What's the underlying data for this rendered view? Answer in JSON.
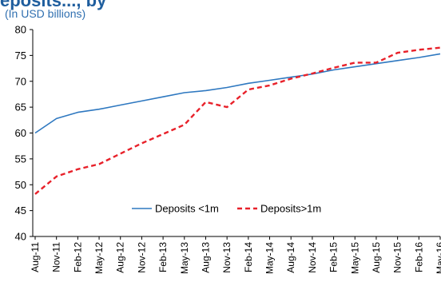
{
  "chart_data": {
    "type": "line",
    "title": "",
    "title_fragment": "eposits..., by",
    "subtitle": "(In USD billions)",
    "xlabel": "",
    "ylabel": "",
    "ylim": [
      40,
      80
    ],
    "yticks": [
      40,
      45,
      50,
      55,
      60,
      65,
      70,
      75,
      80
    ],
    "categories": [
      "Aug-11",
      "Nov-11",
      "Feb-12",
      "May-12",
      "Aug-12",
      "Nov-12",
      "Feb-13",
      "May-13",
      "Aug-13",
      "Nov-13",
      "Feb-14",
      "May-14",
      "Aug-14",
      "Nov-14",
      "Feb-15",
      "May-15",
      "Aug-15",
      "Nov-15",
      "Feb-16",
      "May-16"
    ],
    "legend_position": "center",
    "grid": false,
    "series": [
      {
        "name": "Deposits <1m",
        "color": "#2e78c0",
        "style": "solid",
        "values": [
          60.0,
          62.8,
          64.0,
          64.6,
          65.4,
          66.2,
          67.0,
          67.8,
          68.2,
          68.8,
          69.6,
          70.2,
          70.8,
          71.4,
          72.2,
          72.8,
          73.4,
          74.0,
          74.6,
          75.3
        ]
      },
      {
        "name": "Deposits>1m",
        "color": "#e8212a",
        "style": "dashed",
        "values": [
          48.2,
          51.6,
          53.0,
          54.0,
          56.0,
          58.0,
          59.8,
          61.6,
          66.0,
          65.0,
          68.4,
          69.2,
          70.5,
          71.5,
          72.6,
          73.6,
          73.6,
          75.5,
          76.1,
          76.5
        ]
      }
    ]
  }
}
